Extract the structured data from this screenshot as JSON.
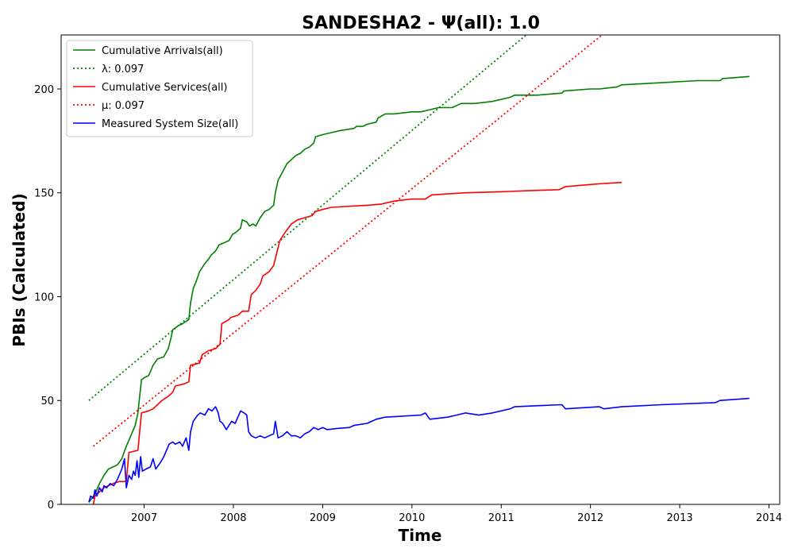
{
  "chart_data": {
    "type": "line",
    "title": "SANDESHA2 -  Ψ(all): 1.0",
    "xlabel": "Time",
    "ylabel": "PBIs (Calculated)",
    "xlim": [
      2006.07,
      2014.12
    ],
    "ylim": [
      0,
      226
    ],
    "xticks": [
      2007,
      2008,
      2009,
      2010,
      2011,
      2012,
      2013,
      2014
    ],
    "yticks": [
      0,
      50,
      100,
      150,
      200
    ],
    "grid": false,
    "legend_position": "top-left",
    "series": [
      {
        "name": "Cumulative Arrivals(all)",
        "color": "#008000",
        "style": "solid",
        "points": [
          [
            2006.38,
            1
          ],
          [
            2006.45,
            5
          ],
          [
            2006.5,
            10
          ],
          [
            2006.55,
            14
          ],
          [
            2006.6,
            17
          ],
          [
            2006.65,
            18
          ],
          [
            2006.7,
            19
          ],
          [
            2006.75,
            22
          ],
          [
            2006.8,
            28
          ],
          [
            2006.85,
            33
          ],
          [
            2006.9,
            38
          ],
          [
            2006.93,
            44
          ],
          [
            2006.95,
            52
          ],
          [
            2006.97,
            60
          ],
          [
            2007.0,
            61
          ],
          [
            2007.05,
            62
          ],
          [
            2007.1,
            67
          ],
          [
            2007.15,
            70
          ],
          [
            2007.22,
            71
          ],
          [
            2007.27,
            75
          ],
          [
            2007.3,
            80
          ],
          [
            2007.32,
            84
          ],
          [
            2007.38,
            86
          ],
          [
            2007.43,
            87
          ],
          [
            2007.5,
            89
          ],
          [
            2007.52,
            97
          ],
          [
            2007.55,
            104
          ],
          [
            2007.58,
            107
          ],
          [
            2007.62,
            112
          ],
          [
            2007.68,
            116
          ],
          [
            2007.72,
            118
          ],
          [
            2007.75,
            120
          ],
          [
            2007.8,
            122
          ],
          [
            2007.84,
            125
          ],
          [
            2007.9,
            126
          ],
          [
            2007.95,
            127
          ],
          [
            2007.99,
            130
          ],
          [
            2008.03,
            131
          ],
          [
            2008.08,
            133
          ],
          [
            2008.1,
            137
          ],
          [
            2008.15,
            136
          ],
          [
            2008.18,
            134
          ],
          [
            2008.22,
            135
          ],
          [
            2008.25,
            134
          ],
          [
            2008.3,
            138
          ],
          [
            2008.35,
            141
          ],
          [
            2008.4,
            142
          ],
          [
            2008.45,
            144
          ],
          [
            2008.47,
            150
          ],
          [
            2008.5,
            156
          ],
          [
            2008.55,
            160
          ],
          [
            2008.6,
            164
          ],
          [
            2008.65,
            166
          ],
          [
            2008.7,
            168
          ],
          [
            2008.75,
            169
          ],
          [
            2008.8,
            171
          ],
          [
            2008.85,
            172
          ],
          [
            2008.9,
            174
          ],
          [
            2008.92,
            177
          ],
          [
            2009.0,
            178
          ],
          [
            2009.1,
            179
          ],
          [
            2009.2,
            180
          ],
          [
            2009.35,
            181
          ],
          [
            2009.38,
            182
          ],
          [
            2009.45,
            182
          ],
          [
            2009.5,
            183
          ],
          [
            2009.6,
            184
          ],
          [
            2009.62,
            186
          ],
          [
            2009.7,
            188
          ],
          [
            2009.8,
            188
          ],
          [
            2010.0,
            189
          ],
          [
            2010.1,
            189
          ],
          [
            2010.2,
            190
          ],
          [
            2010.3,
            191
          ],
          [
            2010.45,
            191
          ],
          [
            2010.55,
            193
          ],
          [
            2010.7,
            193
          ],
          [
            2010.9,
            194
          ],
          [
            2011.0,
            195
          ],
          [
            2011.1,
            196
          ],
          [
            2011.15,
            197
          ],
          [
            2011.4,
            197
          ],
          [
            2011.68,
            198
          ],
          [
            2011.7,
            199
          ],
          [
            2012.0,
            200
          ],
          [
            2012.1,
            200
          ],
          [
            2012.3,
            201
          ],
          [
            2012.35,
            202
          ],
          [
            2012.8,
            203
          ],
          [
            2013.2,
            204
          ],
          [
            2013.45,
            204
          ],
          [
            2013.48,
            205
          ],
          [
            2013.78,
            206
          ]
        ]
      },
      {
        "name": "λ: 0.097",
        "color": "#008000",
        "style": "dotted",
        "points": [
          [
            2006.38,
            50
          ],
          [
            2011.28,
            226
          ]
        ]
      },
      {
        "name": "Cumulative Services(all)",
        "color": "#ff0000",
        "style": "solid",
        "points": [
          [
            2006.43,
            0
          ],
          [
            2006.45,
            4
          ],
          [
            2006.5,
            6
          ],
          [
            2006.55,
            8
          ],
          [
            2006.6,
            9
          ],
          [
            2006.65,
            10
          ],
          [
            2006.72,
            11
          ],
          [
            2006.8,
            11
          ],
          [
            2006.83,
            25
          ],
          [
            2006.93,
            26
          ],
          [
            2006.95,
            35
          ],
          [
            2006.97,
            44
          ],
          [
            2007.05,
            45
          ],
          [
            2007.1,
            46
          ],
          [
            2007.15,
            48
          ],
          [
            2007.2,
            50
          ],
          [
            2007.27,
            52
          ],
          [
            2007.32,
            54
          ],
          [
            2007.35,
            57
          ],
          [
            2007.45,
            58
          ],
          [
            2007.5,
            59
          ],
          [
            2007.52,
            67
          ],
          [
            2007.62,
            68
          ],
          [
            2007.65,
            72
          ],
          [
            2007.72,
            74
          ],
          [
            2007.8,
            75
          ],
          [
            2007.85,
            77
          ],
          [
            2007.87,
            87
          ],
          [
            2007.95,
            89
          ],
          [
            2007.97,
            90
          ],
          [
            2008.05,
            91
          ],
          [
            2008.1,
            93
          ],
          [
            2008.17,
            93
          ],
          [
            2008.2,
            101
          ],
          [
            2008.25,
            103
          ],
          [
            2008.3,
            106
          ],
          [
            2008.33,
            110
          ],
          [
            2008.4,
            112
          ],
          [
            2008.45,
            115
          ],
          [
            2008.48,
            120
          ],
          [
            2008.52,
            127
          ],
          [
            2008.58,
            131
          ],
          [
            2008.65,
            135
          ],
          [
            2008.72,
            137
          ],
          [
            2008.8,
            138
          ],
          [
            2008.88,
            139
          ],
          [
            2008.92,
            141
          ],
          [
            2009.0,
            142
          ],
          [
            2009.1,
            143
          ],
          [
            2009.3,
            143.5
          ],
          [
            2009.5,
            144
          ],
          [
            2009.65,
            144.5
          ],
          [
            2009.8,
            146
          ],
          [
            2010.0,
            147
          ],
          [
            2010.15,
            147
          ],
          [
            2010.22,
            149
          ],
          [
            2010.4,
            149.5
          ],
          [
            2010.6,
            150
          ],
          [
            2011.0,
            150.5
          ],
          [
            2011.3,
            151
          ],
          [
            2011.65,
            151.5
          ],
          [
            2011.72,
            153
          ],
          [
            2012.0,
            154
          ],
          [
            2012.15,
            154.5
          ],
          [
            2012.35,
            155
          ]
        ]
      },
      {
        "name": "μ: 0.097",
        "color": "#ff0000",
        "style": "dotted",
        "points": [
          [
            2006.43,
            28
          ],
          [
            2012.13,
            226
          ]
        ]
      },
      {
        "name": "Measured System Size(all)",
        "color": "#0000ff",
        "style": "solid",
        "points": [
          [
            2006.38,
            1
          ],
          [
            2006.4,
            4
          ],
          [
            2006.43,
            3
          ],
          [
            2006.45,
            7
          ],
          [
            2006.47,
            4
          ],
          [
            2006.5,
            8
          ],
          [
            2006.53,
            6
          ],
          [
            2006.55,
            9
          ],
          [
            2006.58,
            8
          ],
          [
            2006.62,
            10
          ],
          [
            2006.66,
            9
          ],
          [
            2006.7,
            12
          ],
          [
            2006.72,
            14
          ],
          [
            2006.75,
            17
          ],
          [
            2006.78,
            22
          ],
          [
            2006.8,
            8
          ],
          [
            2006.83,
            14
          ],
          [
            2006.86,
            12
          ],
          [
            2006.88,
            16
          ],
          [
            2006.9,
            14
          ],
          [
            2006.92,
            21
          ],
          [
            2006.94,
            13
          ],
          [
            2006.96,
            23
          ],
          [
            2006.98,
            16
          ],
          [
            2007.02,
            17
          ],
          [
            2007.07,
            18
          ],
          [
            2007.1,
            22
          ],
          [
            2007.13,
            17
          ],
          [
            2007.18,
            20
          ],
          [
            2007.22,
            23
          ],
          [
            2007.25,
            26
          ],
          [
            2007.28,
            29
          ],
          [
            2007.32,
            30
          ],
          [
            2007.35,
            29
          ],
          [
            2007.4,
            30
          ],
          [
            2007.43,
            28
          ],
          [
            2007.47,
            32
          ],
          [
            2007.5,
            26
          ],
          [
            2007.52,
            35
          ],
          [
            2007.55,
            40
          ],
          [
            2007.6,
            43
          ],
          [
            2007.63,
            44
          ],
          [
            2007.68,
            43
          ],
          [
            2007.72,
            46
          ],
          [
            2007.76,
            45
          ],
          [
            2007.8,
            47
          ],
          [
            2007.83,
            44
          ],
          [
            2007.85,
            40
          ],
          [
            2007.88,
            39
          ],
          [
            2007.92,
            36
          ],
          [
            2007.95,
            38
          ],
          [
            2007.98,
            40
          ],
          [
            2008.02,
            39
          ],
          [
            2008.05,
            42
          ],
          [
            2008.08,
            45
          ],
          [
            2008.12,
            44
          ],
          [
            2008.15,
            43
          ],
          [
            2008.17,
            35
          ],
          [
            2008.2,
            33
          ],
          [
            2008.25,
            32
          ],
          [
            2008.3,
            33
          ],
          [
            2008.35,
            32
          ],
          [
            2008.4,
            33
          ],
          [
            2008.45,
            34
          ],
          [
            2008.47,
            40
          ],
          [
            2008.5,
            32
          ],
          [
            2008.55,
            33
          ],
          [
            2008.6,
            35
          ],
          [
            2008.65,
            33
          ],
          [
            2008.7,
            33
          ],
          [
            2008.75,
            32
          ],
          [
            2008.8,
            34
          ],
          [
            2008.85,
            35
          ],
          [
            2008.9,
            37
          ],
          [
            2008.95,
            36
          ],
          [
            2009.0,
            37
          ],
          [
            2009.05,
            36
          ],
          [
            2009.15,
            36.5
          ],
          [
            2009.3,
            37
          ],
          [
            2009.35,
            38
          ],
          [
            2009.5,
            39
          ],
          [
            2009.55,
            40
          ],
          [
            2009.6,
            41
          ],
          [
            2009.7,
            42
          ],
          [
            2009.9,
            42.5
          ],
          [
            2010.1,
            43
          ],
          [
            2010.15,
            44
          ],
          [
            2010.2,
            41
          ],
          [
            2010.4,
            42
          ],
          [
            2010.5,
            43
          ],
          [
            2010.6,
            44
          ],
          [
            2010.75,
            43
          ],
          [
            2010.9,
            44
          ],
          [
            2011.0,
            45
          ],
          [
            2011.1,
            46
          ],
          [
            2011.15,
            47
          ],
          [
            2011.4,
            47.5
          ],
          [
            2011.68,
            48
          ],
          [
            2011.72,
            46
          ],
          [
            2012.1,
            47
          ],
          [
            2012.15,
            46
          ],
          [
            2012.35,
            47
          ],
          [
            2012.8,
            48
          ],
          [
            2013.4,
            49
          ],
          [
            2013.45,
            50
          ],
          [
            2013.78,
            51
          ]
        ]
      }
    ]
  }
}
